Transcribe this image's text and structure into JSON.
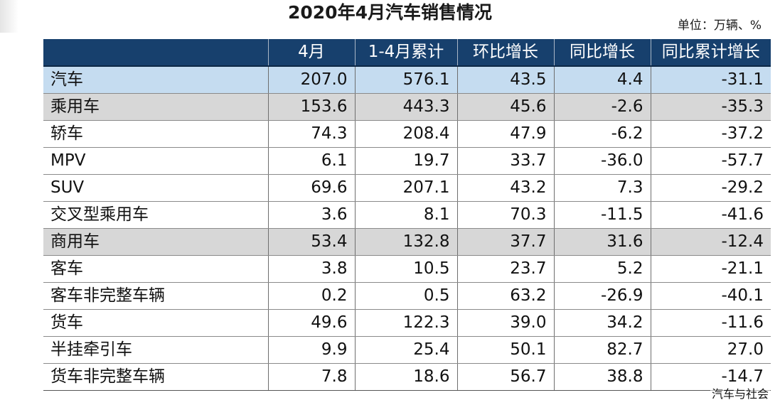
{
  "title": "2020年4月汽车销售情况",
  "unit": "单位：万辆、%",
  "columns": [
    "4月",
    "1-4月累计",
    "环比增长",
    "同比增长",
    "同比累计增长"
  ],
  "rows": [
    {
      "name": "汽车",
      "values": [
        "207.0",
        "576.1",
        "43.5",
        "4.4",
        "-31.1"
      ]
    },
    {
      "name": "乘用车",
      "values": [
        "153.6",
        "443.3",
        "45.6",
        "-2.6",
        "-35.3"
      ]
    },
    {
      "name": "轿车",
      "values": [
        "74.3",
        "208.4",
        "47.9",
        "-6.2",
        "-37.2"
      ]
    },
    {
      "name": "MPV",
      "values": [
        "6.1",
        "19.7",
        "33.7",
        "-36.0",
        "-57.7"
      ]
    },
    {
      "name": "SUV",
      "values": [
        "69.6",
        "207.1",
        "43.2",
        "7.3",
        "-29.2"
      ]
    },
    {
      "name": "交叉型乘用车",
      "values": [
        "3.6",
        "8.1",
        "70.3",
        "-11.5",
        "-41.6"
      ]
    },
    {
      "name": "商用车",
      "values": [
        "53.4",
        "132.8",
        "37.7",
        "31.6",
        "-12.4"
      ]
    },
    {
      "name": "客车",
      "values": [
        "3.8",
        "10.5",
        "23.7",
        "5.2",
        "-21.1"
      ]
    },
    {
      "name": "客车非完整车辆",
      "values": [
        "0.2",
        "0.5",
        "63.2",
        "-26.9",
        "-40.1"
      ]
    },
    {
      "name": "货车",
      "values": [
        "49.6",
        "122.3",
        "39.0",
        "34.2",
        "-11.6"
      ]
    },
    {
      "name": "半挂牵引车",
      "values": [
        "9.9",
        "25.4",
        "50.1",
        "82.7",
        "27.0"
      ]
    },
    {
      "name": "货车非完整车辆",
      "values": [
        "7.8",
        "18.6",
        "56.7",
        "38.8",
        "-14.7"
      ]
    }
  ],
  "watermark": "汽车与社会",
  "colors": {
    "header_bg": "#17406d",
    "total_row_bg": "#c5dcf0",
    "group_row_bg": "#d7d7d7"
  }
}
